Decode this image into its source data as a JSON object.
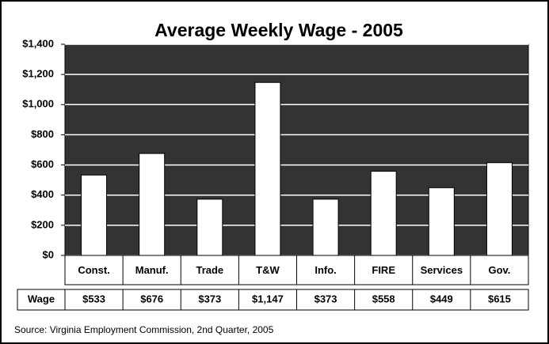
{
  "chart_data": {
    "type": "bar",
    "title": "Average Weekly Wage - 2005",
    "categories": [
      "Const.",
      "Manuf.",
      "Trade",
      "T&W",
      "Info.",
      "FIRE",
      "Services",
      "Gov."
    ],
    "values": [
      533,
      676,
      373,
      1147,
      373,
      558,
      449,
      615
    ],
    "value_labels": [
      "$533",
      "$676",
      "$373",
      "$1,147",
      "$373",
      "$558",
      "$449",
      "$615"
    ],
    "row_label": "Wage",
    "color": "#ffffff",
    "plot_background": "#333333",
    "grid": true,
    "ylim": [
      0,
      1400
    ],
    "yticks": [
      {
        "value": 0,
        "label": "$0"
      },
      {
        "value": 200,
        "label": "$200"
      },
      {
        "value": 400,
        "label": "$400"
      },
      {
        "value": 600,
        "label": "$600"
      },
      {
        "value": 800,
        "label": "$800"
      },
      {
        "value": 1000,
        "label": "$1,000"
      },
      {
        "value": 1200,
        "label": "$1,200"
      },
      {
        "value": 1400,
        "label": "$1,400"
      }
    ],
    "source": "Source: Virginia Employment Commission, 2nd Quarter, 2005"
  }
}
